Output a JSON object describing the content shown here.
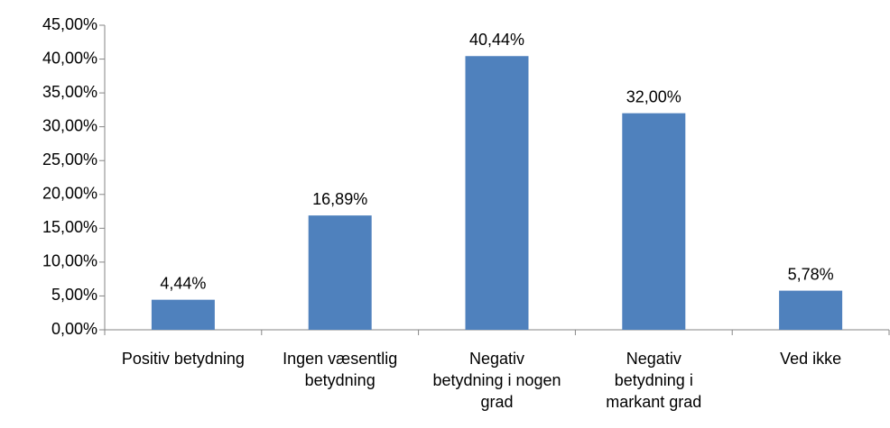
{
  "chart_data": {
    "type": "bar",
    "categories": [
      "Positiv betydning",
      "Ingen væsentlig betydning",
      "Negativ betydning i nogen grad",
      "Negativ betydning i markant grad",
      "Ved ikke"
    ],
    "values": [
      4.44,
      16.89,
      40.44,
      32.0,
      5.78
    ],
    "value_labels": [
      "4,44%",
      "16,89%",
      "40,44%",
      "32,00%",
      "5,78%"
    ],
    "color": "#4f81bd",
    "ylim": [
      0,
      45
    ],
    "yticks": [
      {
        "value": 0,
        "label": "0,00%"
      },
      {
        "value": 5,
        "label": "5,00%"
      },
      {
        "value": 10,
        "label": "10,00%"
      },
      {
        "value": 15,
        "label": "15,00%"
      },
      {
        "value": 20,
        "label": "20,00%"
      },
      {
        "value": 25,
        "label": "25,00%"
      },
      {
        "value": 30,
        "label": "30,00%"
      },
      {
        "value": 35,
        "label": "35,00%"
      },
      {
        "value": 40,
        "label": "40,00%"
      },
      {
        "value": 45,
        "label": "45,00%"
      }
    ],
    "grid": false
  }
}
